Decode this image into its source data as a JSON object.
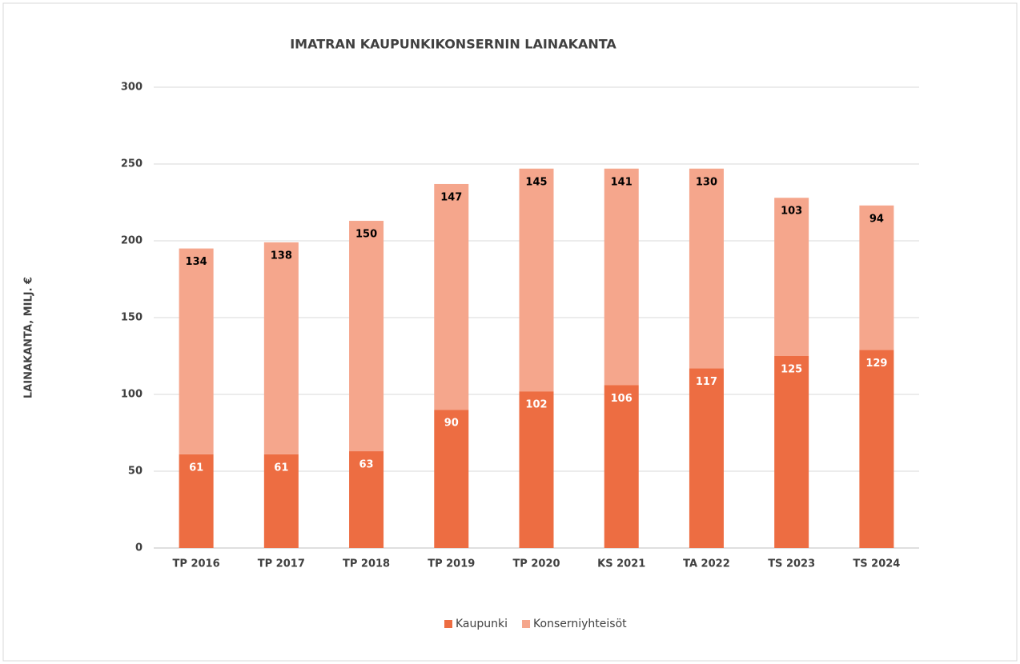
{
  "chart_data": {
    "type": "stacked_bar",
    "title": "IMATRAN KAUPUNKIKONSERNIN LAINAKANTA",
    "y_label": "LAINAKANTA, MILJ. €",
    "categories": [
      "TP 2016",
      "TP 2017",
      "TP 2018",
      "TP 2019",
      "TP 2020",
      "KS 2021",
      "TA 2022",
      "TS 2023",
      "TS 2024"
    ],
    "series": [
      {
        "name": "Kaupunki",
        "color": "#ed6d42",
        "values": [
          61,
          61,
          63,
          90,
          102,
          106,
          117,
          125,
          129
        ]
      },
      {
        "name": "Konserniyhteisöt",
        "color": "#f5a68c",
        "values": [
          134,
          138,
          150,
          147,
          145,
          141,
          130,
          103,
          94
        ]
      }
    ],
    "ylim": [
      0,
      300
    ],
    "yticks": [
      0,
      50,
      100,
      150,
      200,
      250,
      300
    ],
    "grid": true,
    "legend": "bottom"
  }
}
